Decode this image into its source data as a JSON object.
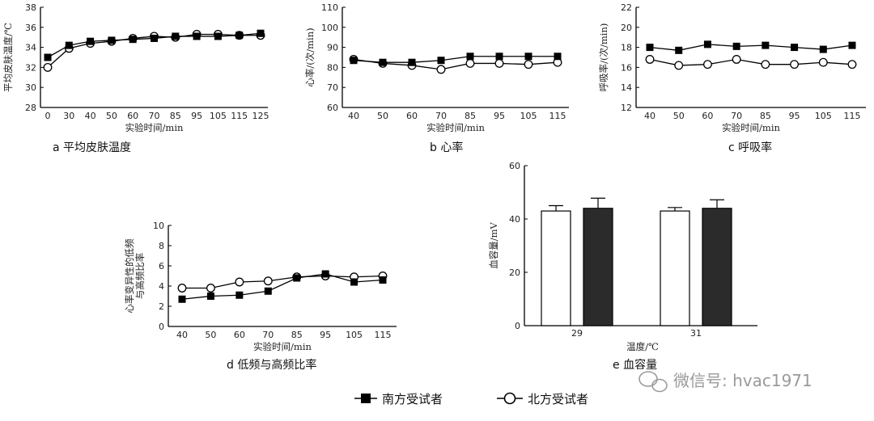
{
  "watermark": "微信号: hvac1971",
  "legend": {
    "south_label": "南方受试者",
    "north_label": "北方受试者"
  },
  "chart_data": [
    {
      "id": "a",
      "type": "line",
      "caption": "a  平均皮肤温度",
      "xlabel": "实验时间/min",
      "ylabel": "平均皮肤温度/℃",
      "categories": [
        "0",
        "30",
        "40",
        "50",
        "60",
        "70",
        "85",
        "95",
        "105",
        "115",
        "125"
      ],
      "ylim": [
        28,
        38
      ],
      "yticks": [
        28,
        30,
        32,
        34,
        36,
        38
      ],
      "series": [
        {
          "name": "南方受试者",
          "marker": "filled-square",
          "values": [
            33.0,
            34.2,
            34.6,
            34.7,
            34.8,
            34.9,
            35.1,
            35.1,
            35.1,
            35.2,
            35.4
          ]
        },
        {
          "name": "北方受试者",
          "marker": "open-circle",
          "values": [
            32.0,
            33.9,
            34.4,
            34.6,
            34.9,
            35.1,
            35.0,
            35.3,
            35.3,
            35.2,
            35.2
          ]
        }
      ]
    },
    {
      "id": "b",
      "type": "line",
      "caption": "b  心率",
      "xlabel": "实验时间/min",
      "ylabel": "心率/(次/min)",
      "categories": [
        "40",
        "50",
        "60",
        "70",
        "85",
        "95",
        "105",
        "115"
      ],
      "ylim": [
        60,
        110
      ],
      "yticks": [
        60,
        70,
        80,
        90,
        100,
        110
      ],
      "series": [
        {
          "name": "南方受试者",
          "marker": "filled-square",
          "values": [
            83.5,
            82.5,
            82.5,
            83.5,
            85.5,
            85.5,
            85.5,
            85.5
          ]
        },
        {
          "name": "北方受试者",
          "marker": "open-circle",
          "values": [
            84.0,
            82.0,
            81.0,
            79.0,
            82.0,
            82.0,
            81.5,
            82.5
          ]
        }
      ]
    },
    {
      "id": "c",
      "type": "line",
      "caption": "c  呼吸率",
      "xlabel": "实验时间/min",
      "ylabel": "呼吸率/(次/min)",
      "categories": [
        "40",
        "50",
        "60",
        "70",
        "85",
        "95",
        "105",
        "115"
      ],
      "ylim": [
        12,
        22
      ],
      "yticks": [
        12,
        14,
        16,
        18,
        20,
        22
      ],
      "series": [
        {
          "name": "南方受试者",
          "marker": "filled-square",
          "values": [
            18.0,
            17.7,
            18.3,
            18.1,
            18.2,
            18.0,
            17.8,
            18.2
          ]
        },
        {
          "name": "北方受试者",
          "marker": "open-circle",
          "values": [
            16.8,
            16.2,
            16.3,
            16.8,
            16.3,
            16.3,
            16.5,
            16.3
          ]
        }
      ]
    },
    {
      "id": "d",
      "type": "line",
      "caption": "d  低频与高频比率",
      "xlabel": "实验时间/min",
      "ylabel_line1": "心率变异性的低频",
      "ylabel_line2": "与高频比率",
      "categories": [
        "40",
        "50",
        "60",
        "70",
        "85",
        "95",
        "105",
        "115"
      ],
      "ylim": [
        0,
        10
      ],
      "yticks": [
        0,
        2,
        4,
        6,
        8,
        10
      ],
      "series": [
        {
          "name": "南方受试者",
          "marker": "filled-square",
          "values": [
            2.7,
            3.0,
            3.1,
            3.5,
            4.8,
            5.2,
            4.4,
            4.6
          ]
        },
        {
          "name": "北方受试者",
          "marker": "open-circle",
          "values": [
            3.8,
            3.8,
            4.4,
            4.5,
            4.9,
            5.0,
            4.9,
            5.0
          ]
        }
      ]
    },
    {
      "id": "e",
      "type": "bar",
      "caption": "e  血容量",
      "xlabel": "温度/℃",
      "ylabel": "血容量/mV",
      "categories": [
        "29",
        "31"
      ],
      "ylim": [
        0,
        60
      ],
      "yticks": [
        0,
        20,
        40,
        60
      ],
      "series": [
        {
          "name": "南方受试者",
          "fill": "white",
          "values": [
            43.0,
            43.0
          ],
          "errors": [
            2.0,
            1.3
          ]
        },
        {
          "name": "北方受试者",
          "fill": "#2b2b2b",
          "values": [
            44.0,
            44.0
          ],
          "errors": [
            3.8,
            3.2
          ]
        }
      ]
    }
  ]
}
